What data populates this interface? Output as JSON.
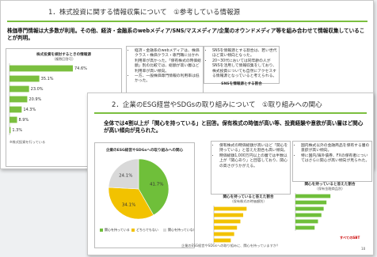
{
  "back_slide": {
    "title": "1．株式投資に関する情報収集について　①参考している情報源",
    "lead": "株価専門情報は大多数が利用。その他、経済・金融系のwebメディア/SNS/マスメディア/企業のオウンドメディア等を組み合わせて情報収集していることが判明。",
    "chart": {
      "type": "bar",
      "title": "株式投資を検討するときの情報源",
      "subtitle": "（複数回答可）",
      "values": [
        74.6,
        35.1,
        23.0,
        20.9,
        14.3,
        8.9,
        1.3
      ],
      "value_labels": [
        "74.6%",
        "35.1%",
        "23.0%",
        "20.9%",
        "14.3%",
        "8.9%",
        "1.3%"
      ],
      "color": "#7bbf3f",
      "xlim": [
        0,
        100
      ]
    },
    "middle_notes": [
      "経済・金融系のwebメディアは、株価クラス・株価クラス・専門職に分かれ利用率が高かった。「保有株式の時価総額」別の比較では、総額が高い層ほど利用率が高い傾向。",
      "一方、一般株価専門情報の利用率は低かった。"
    ],
    "middle_caption": "経済・金融系webメディアを参考情報源とする割合",
    "right_notes": [
      "SNSを情報源とする割合は、若い世代ほど高い傾向となった。",
      "20~30代においては同年齢の人がSNSを活用して情報収集をしており、株式投資についても自然にアクセスする情報源となっていると考えられる。"
    ],
    "right_caption": "SNSを情報源とする割合",
    "footnote": "※株式投資を行っている"
  },
  "front_slide": {
    "title": "2．企業のESG経営やSDGsの取り組みについて　①取り組みへの関心",
    "lead": "全体では4割以上が「関心を持っている」と回答。保有株式の時価が高い等、投資経験や意欲が高い層ほど関心が高い傾向が見られた。",
    "pie": {
      "type": "pie",
      "title": "企業のESG経営やSDGsへの取り組みへの関心",
      "values": [
        41.7,
        34.1,
        24.1
      ],
      "value_labels": [
        "41.7%",
        "34.1%",
        "24.1%"
      ],
      "colors": [
        "#6fbf3a",
        "#f2c200",
        "#d9d9d9"
      ],
      "legend": [
        "関心を持っている",
        "どちらでもない",
        "関心を持っていない"
      ]
    },
    "middle_notes": [
      "保有株式の時価総額が高いほど「関心を持っている」と答えた割合も高い傾向。",
      "時価総額1,000万円以上の層では半数以上が「関心あり」と回答しており、関心の高さがうかがえる。"
    ],
    "middle_chart": {
      "type": "bar",
      "title": "関心を持っていると答えた割合",
      "subtitle": "（保有株式の時価額別）",
      "values": [
        58,
        52,
        47,
        41,
        36,
        30
      ],
      "color": "#f2c200",
      "xlim": [
        0,
        100
      ]
    },
    "right_notes": [
      "国内株式以外の金融商品を保有する層の意欲が高い傾向。",
      "特に国内/海外債券、FXの保有者についてはさらに関心が高い傾向が見られた。"
    ],
    "right_chart": {
      "type": "bar",
      "title": "関心を持っていると答えた割合",
      "subtitle": "（保有金融商品別）",
      "values": [
        62,
        55,
        50,
        46,
        40,
        34
      ],
      "color": "#6fbf3a",
      "xlim": [
        0,
        100
      ]
    },
    "question": "企業のESG経営やSDGsへの取り組みに、関心を持っていますか？",
    "brand": "すべてのSBT",
    "page": "10"
  }
}
